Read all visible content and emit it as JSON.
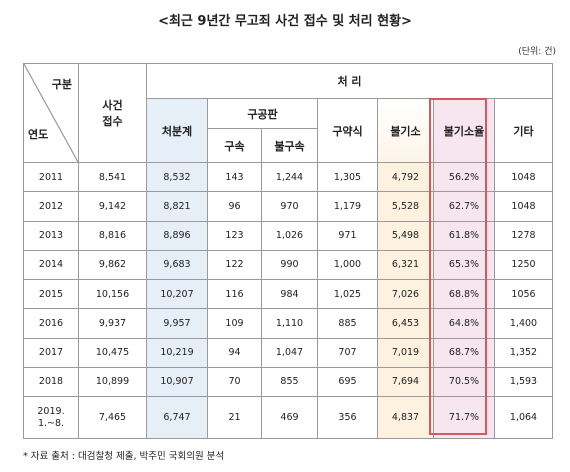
{
  "title": "<최근 9년간 무고죄 사건 접수 및 처리 현황>",
  "unit": "(단위: 건)",
  "header": {
    "category": "구분",
    "year": "연도",
    "received": "사건\n접수",
    "processing": "처 리",
    "disposition": "처분계",
    "public_trial": "구공판",
    "detained": "구속",
    "not_detained": "불구속",
    "summary_order": "구약식",
    "non_prosecution": "불기소",
    "non_prosecution_rate": "불기소율",
    "other": "기타"
  },
  "rows": [
    {
      "year": "2011",
      "received": "8,541",
      "disposition": "8,532",
      "detained": "143",
      "not_detained": "1,244",
      "summary_order": "1,305",
      "non_prosecution": "4,792",
      "rate": "56.2%",
      "other": "1048"
    },
    {
      "year": "2012",
      "received": "9,142",
      "disposition": "8,821",
      "detained": "96",
      "not_detained": "970",
      "summary_order": "1,179",
      "non_prosecution": "5,528",
      "rate": "62.7%",
      "other": "1048"
    },
    {
      "year": "2013",
      "received": "8,816",
      "disposition": "8,896",
      "detained": "123",
      "not_detained": "1,026",
      "summary_order": "971",
      "non_prosecution": "5,498",
      "rate": "61.8%",
      "other": "1278"
    },
    {
      "year": "2014",
      "received": "9,862",
      "disposition": "9,683",
      "detained": "122",
      "not_detained": "990",
      "summary_order": "1,000",
      "non_prosecution": "6,321",
      "rate": "65.3%",
      "other": "1250"
    },
    {
      "year": "2015",
      "received": "10,156",
      "disposition": "10,207",
      "detained": "116",
      "not_detained": "984",
      "summary_order": "1,025",
      "non_prosecution": "7,026",
      "rate": "68.8%",
      "other": "1056"
    },
    {
      "year": "2016",
      "received": "9,937",
      "disposition": "9,957",
      "detained": "109",
      "not_detained": "1,110",
      "summary_order": "885",
      "non_prosecution": "6,453",
      "rate": "64.8%",
      "other": "1,400"
    },
    {
      "year": "2017",
      "received": "10,475",
      "disposition": "10,219",
      "detained": "94",
      "not_detained": "1,047",
      "summary_order": "707",
      "non_prosecution": "7,019",
      "rate": "68.7%",
      "other": "1,352"
    },
    {
      "year": "2018",
      "received": "10,899",
      "disposition": "10,907",
      "detained": "70",
      "not_detained": "855",
      "summary_order": "695",
      "non_prosecution": "7,694",
      "rate": "70.5%",
      "other": "1,593"
    },
    {
      "year": "2019.\n1.~8.",
      "received": "7,465",
      "disposition": "6,747",
      "detained": "21",
      "not_detained": "469",
      "summary_order": "356",
      "non_prosecution": "4,837",
      "rate": "71.7%",
      "other": "1,064"
    }
  ],
  "footnote": "* 자료 출처 : 대검찰청 제출, 박주민 국회의원 분석",
  "colors": {
    "disposition_bg": "#e6eef8",
    "non_prosecution_bg": "#fdf1e0",
    "rate_bg": "#f7e6f0",
    "highlight_border": "#d15a62"
  }
}
